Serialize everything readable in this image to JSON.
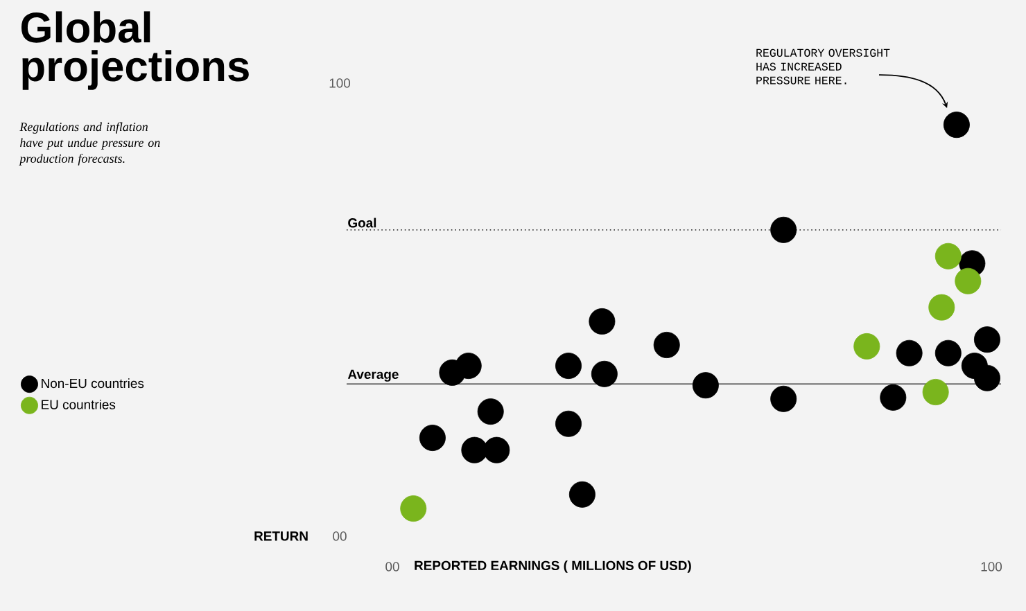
{
  "chart_data": {
    "type": "scatter",
    "title": "Global projections",
    "subtitle": "Regulations and inflation have put undue pressure on production forecasts.",
    "xlabel": "REPORTED EARNINGS ( MILLIONS OF USD)",
    "ylabel": "RETURN",
    "annotations": [
      "REGULATORY OVERSIGHT HAS INCREASED PRESSURE HERE."
    ],
    "series": [
      {
        "name": "Non-EU countries",
        "color": "#000000",
        "x": [
          94.2,
          65.3,
          96.8,
          35.0,
          45.8,
          12.7,
          10.0,
          29.4,
          35.4,
          52.3,
          65.3,
          86.3,
          92.8,
          99.3,
          97.2,
          99.3,
          83.6,
          16.4,
          29.4,
          6.7,
          13.7,
          17.4,
          31.7
        ],
        "values": [
          90.8,
          67.6,
          60.2,
          47.4,
          42.2,
          37.6,
          36.1,
          37.6,
          35.8,
          33.3,
          30.3,
          40.4,
          40.4,
          43.4,
          37.6,
          34.9,
          30.6,
          27.5,
          24.8,
          21.7,
          19.0,
          19.0,
          9.2
        ]
      },
      {
        "name": "EU countries",
        "color": "#7ab51d",
        "x": [
          92.8,
          96.1,
          91.7,
          79.2,
          90.7,
          3.5
        ],
        "values": [
          61.8,
          56.3,
          50.5,
          41.9,
          31.8,
          6.1
        ]
      }
    ],
    "xlim": [
      0,
      100
    ],
    "ylim": [
      0,
      100
    ],
    "xticks": [
      {
        "value": 0,
        "label": "00"
      },
      100
    ],
    "yticks": [
      {
        "value": 0,
        "label": "00"
      },
      100
    ],
    "ref_lines": [
      {
        "axis": "y",
        "value": 67.6,
        "label": "Goal",
        "line_style": "dotted"
      },
      {
        "axis": "y",
        "value": 33.6,
        "label": "Average",
        "line_style": "solid"
      }
    ],
    "legend": "left",
    "marker": "circle"
  }
}
